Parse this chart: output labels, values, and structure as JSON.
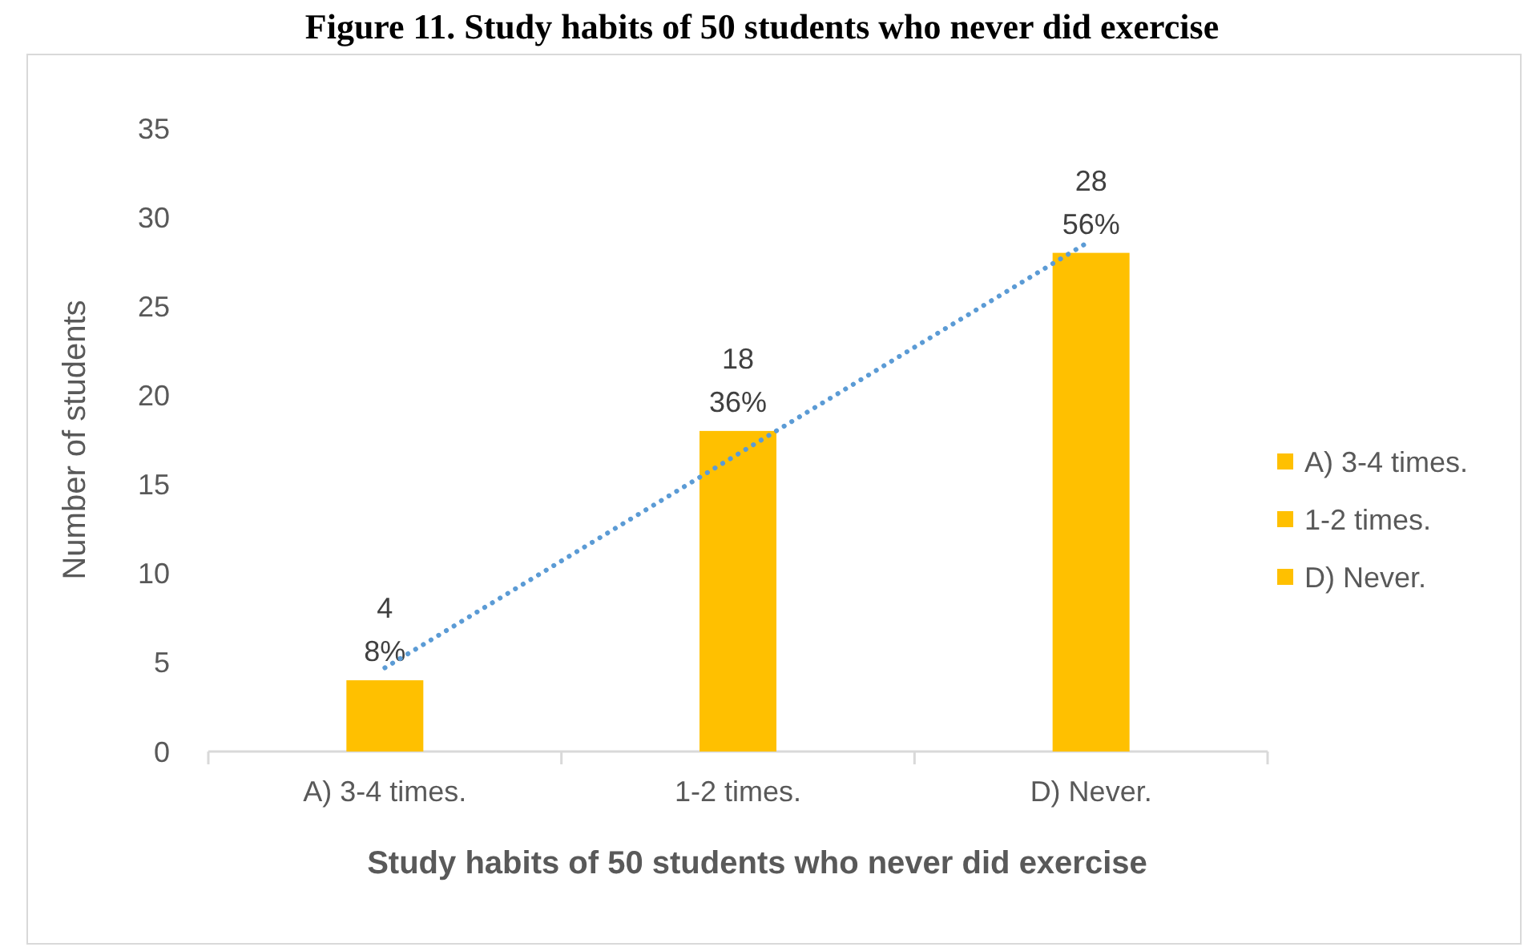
{
  "chart_data": {
    "type": "bar",
    "title": "Figure 11. Study habits of 50 students who never did exercise",
    "xlabel": "Study habits of 50 students who never did exercise",
    "ylabel": "Number of students",
    "categories": [
      "A) 3-4 times.",
      "1-2 times.",
      "D) Never."
    ],
    "stacked": true,
    "series": [
      {
        "name": "A) 3-4 times.",
        "color": "#ffc000",
        "values": [
          4,
          null,
          null
        ],
        "value_labels": [
          "4\n8%",
          null,
          null
        ]
      },
      {
        "name": "1-2 times.",
        "color": "#ffc000",
        "values": [
          null,
          18,
          null
        ],
        "value_labels": [
          null,
          "18\n36%",
          null
        ]
      },
      {
        "name": "D) Never.",
        "color": "#ffc000",
        "values": [
          null,
          null,
          28
        ],
        "value_labels": [
          null,
          null,
          "28\n56%"
        ]
      },
      {
        "type": "line",
        "values": [
          4.7,
          16.7,
          28.7
        ],
        "color": "#5b9bd5",
        "line_style": "dotted",
        "marker": "none"
      }
    ],
    "ylim": [
      0,
      35
    ],
    "yticks": [
      0,
      5,
      10,
      15,
      20,
      25,
      30,
      35
    ],
    "grid": false,
    "legend": "right"
  }
}
